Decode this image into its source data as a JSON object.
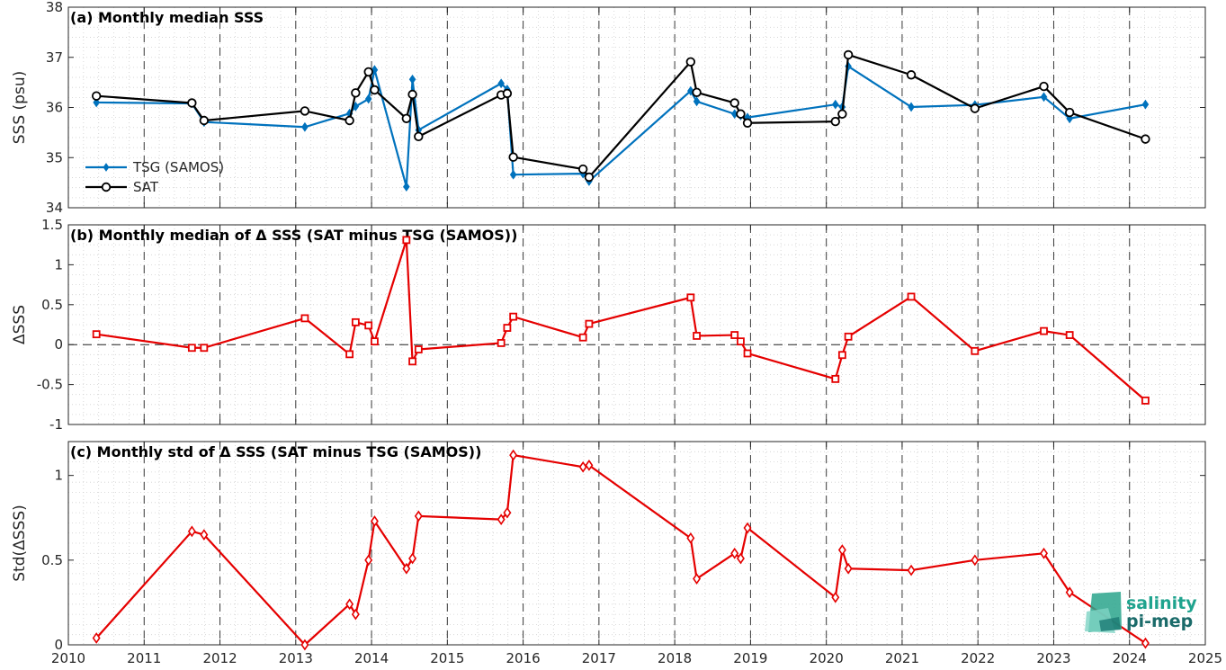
{
  "chart_data": [
    {
      "type": "line",
      "title": "(a) Monthly median SSS",
      "xlabel": "",
      "ylabel": "SSS (psu)",
      "xlim": [
        2010,
        2025
      ],
      "ylim": [
        34,
        38
      ],
      "yticks": [
        34,
        35,
        36,
        37,
        38
      ],
      "grid": true,
      "legend_position": "lower-left",
      "series": [
        {
          "name": "TSG (SAMOS)",
          "color": "#0072BD",
          "marker": "diamond",
          "x": [
            2010.37,
            2011.63,
            2011.79,
            2013.12,
            2013.71,
            2013.79,
            2013.96,
            2014.04,
            2014.46,
            2014.54,
            2014.62,
            2015.71,
            2015.79,
            2015.87,
            2016.79,
            2016.87,
            2018.21,
            2018.29,
            2018.79,
            2018.87,
            2018.96,
            2020.12,
            2020.21,
            2020.29,
            2021.12,
            2021.96,
            2022.87,
            2023.21,
            2024.21
          ],
          "y": [
            36.1,
            36.08,
            35.71,
            35.61,
            35.88,
            36.02,
            36.17,
            36.75,
            34.42,
            36.56,
            35.55,
            36.48,
            36.36,
            34.66,
            34.68,
            34.53,
            36.33,
            36.12,
            35.87,
            35.84,
            35.8,
            36.06,
            36.01,
            36.82,
            36.01,
            36.05,
            36.21,
            35.78,
            36.06
          ]
        },
        {
          "name": "SAT",
          "color": "#000000",
          "marker": "circle",
          "x": [
            2010.37,
            2011.63,
            2011.79,
            2013.12,
            2013.71,
            2013.79,
            2013.96,
            2014.04,
            2014.46,
            2014.54,
            2014.62,
            2015.71,
            2015.79,
            2015.87,
            2016.79,
            2016.87,
            2018.21,
            2018.29,
            2018.79,
            2018.87,
            2018.96,
            2020.12,
            2020.21,
            2020.29,
            2021.12,
            2021.96,
            2022.87,
            2023.21,
            2024.21
          ],
          "y": [
            36.23,
            36.09,
            35.74,
            35.93,
            35.74,
            36.29,
            36.71,
            36.35,
            35.78,
            36.26,
            35.42,
            36.25,
            36.28,
            35.01,
            34.77,
            34.61,
            36.91,
            36.3,
            36.09,
            35.87,
            35.69,
            35.72,
            35.87,
            37.05,
            36.65,
            35.98,
            36.42,
            35.9,
            35.37
          ]
        }
      ]
    },
    {
      "type": "line",
      "title": "(b) Monthly median of Δ SSS (SAT minus TSG (SAMOS))",
      "xlabel": "",
      "ylabel": "ΔSSS",
      "xlim": [
        2010,
        2025
      ],
      "ylim": [
        -1,
        1.5
      ],
      "yticks": [
        -1,
        -0.5,
        0,
        0.5,
        1,
        1.5
      ],
      "grid": true,
      "zero_line": "dashed",
      "series": [
        {
          "color": "#E50000",
          "marker": "square",
          "x": [
            2010.37,
            2011.63,
            2011.79,
            2013.12,
            2013.71,
            2013.79,
            2013.96,
            2014.04,
            2014.46,
            2014.54,
            2014.62,
            2015.71,
            2015.79,
            2015.87,
            2016.79,
            2016.87,
            2018.21,
            2018.29,
            2018.79,
            2018.87,
            2018.96,
            2020.12,
            2020.21,
            2020.29,
            2021.12,
            2021.96,
            2022.87,
            2023.21,
            2024.21
          ],
          "y": [
            0.13,
            -0.04,
            -0.04,
            0.33,
            -0.12,
            0.28,
            0.24,
            0.04,
            1.31,
            -0.21,
            -0.06,
            0.02,
            0.21,
            0.35,
            0.09,
            0.26,
            0.59,
            0.11,
            0.12,
            0.04,
            -0.11,
            -0.43,
            -0.13,
            0.1,
            0.6,
            -0.08,
            0.17,
            0.12,
            -0.7
          ]
        }
      ]
    },
    {
      "type": "line",
      "title": "(c) Monthly std of Δ SSS (SAT minus TSG (SAMOS))",
      "xlabel": "",
      "ylabel": "Std(ΔSSS)",
      "xlim": [
        2010,
        2025
      ],
      "ylim": [
        0,
        1.2
      ],
      "yticks": [
        0,
        0.5,
        1
      ],
      "xticks": [
        2010,
        2011,
        2012,
        2013,
        2014,
        2015,
        2016,
        2017,
        2018,
        2019,
        2020,
        2021,
        2022,
        2023,
        2024,
        2025
      ],
      "grid": true,
      "series": [
        {
          "color": "#E50000",
          "marker": "diamond",
          "x": [
            2010.37,
            2011.63,
            2011.79,
            2013.12,
            2013.71,
            2013.79,
            2013.96,
            2014.04,
            2014.46,
            2014.54,
            2014.62,
            2015.71,
            2015.79,
            2015.87,
            2016.79,
            2016.87,
            2018.21,
            2018.29,
            2018.79,
            2018.87,
            2018.96,
            2020.12,
            2020.21,
            2020.29,
            2021.12,
            2021.96,
            2022.87,
            2023.21,
            2024.21
          ],
          "y": [
            0.04,
            0.67,
            0.65,
            0.0,
            0.24,
            0.18,
            0.5,
            0.73,
            0.45,
            0.51,
            0.76,
            0.74,
            0.78,
            1.12,
            1.05,
            1.06,
            0.63,
            0.39,
            0.54,
            0.51,
            0.69,
            0.28,
            0.56,
            0.45,
            0.44,
            0.5,
            0.54,
            0.31,
            0.01
          ]
        }
      ]
    }
  ],
  "logo": {
    "line1": "salinity",
    "line2": "pi-mep"
  }
}
